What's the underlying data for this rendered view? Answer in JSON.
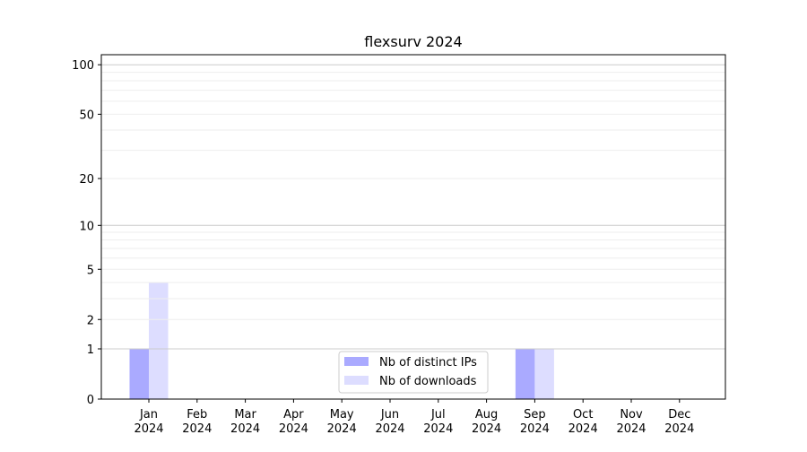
{
  "chart_data": {
    "type": "bar",
    "title": "flexsurv 2024",
    "xlabel": "",
    "ylabel": "",
    "y_scale": "log(1+y)",
    "ylim": [
      0,
      115
    ],
    "y_ticks": [
      0,
      1,
      2,
      5,
      10,
      20,
      50,
      100
    ],
    "y_major_grid": [
      1,
      10,
      100
    ],
    "y_minor_grid": [
      3,
      4,
      6,
      7,
      8,
      9,
      30,
      40,
      60,
      70,
      80,
      90
    ],
    "grid": true,
    "legend_position": "bottom-center",
    "categories": [
      [
        "Jan",
        "2024"
      ],
      [
        "Feb",
        "2024"
      ],
      [
        "Mar",
        "2024"
      ],
      [
        "Apr",
        "2024"
      ],
      [
        "May",
        "2024"
      ],
      [
        "Jun",
        "2024"
      ],
      [
        "Jul",
        "2024"
      ],
      [
        "Aug",
        "2024"
      ],
      [
        "Sep",
        "2024"
      ],
      [
        "Oct",
        "2024"
      ],
      [
        "Nov",
        "2024"
      ],
      [
        "Dec",
        "2024"
      ]
    ],
    "series": [
      {
        "name": "Nb of distinct IPs",
        "color": "#aaaaff",
        "values": [
          1,
          0,
          0,
          0,
          0,
          0,
          0,
          0,
          1,
          0,
          0,
          0
        ]
      },
      {
        "name": "Nb of downloads",
        "color": "#ddddff",
        "values": [
          4,
          0,
          0,
          0,
          0,
          0,
          0,
          0,
          1,
          0,
          0,
          0
        ]
      }
    ]
  }
}
